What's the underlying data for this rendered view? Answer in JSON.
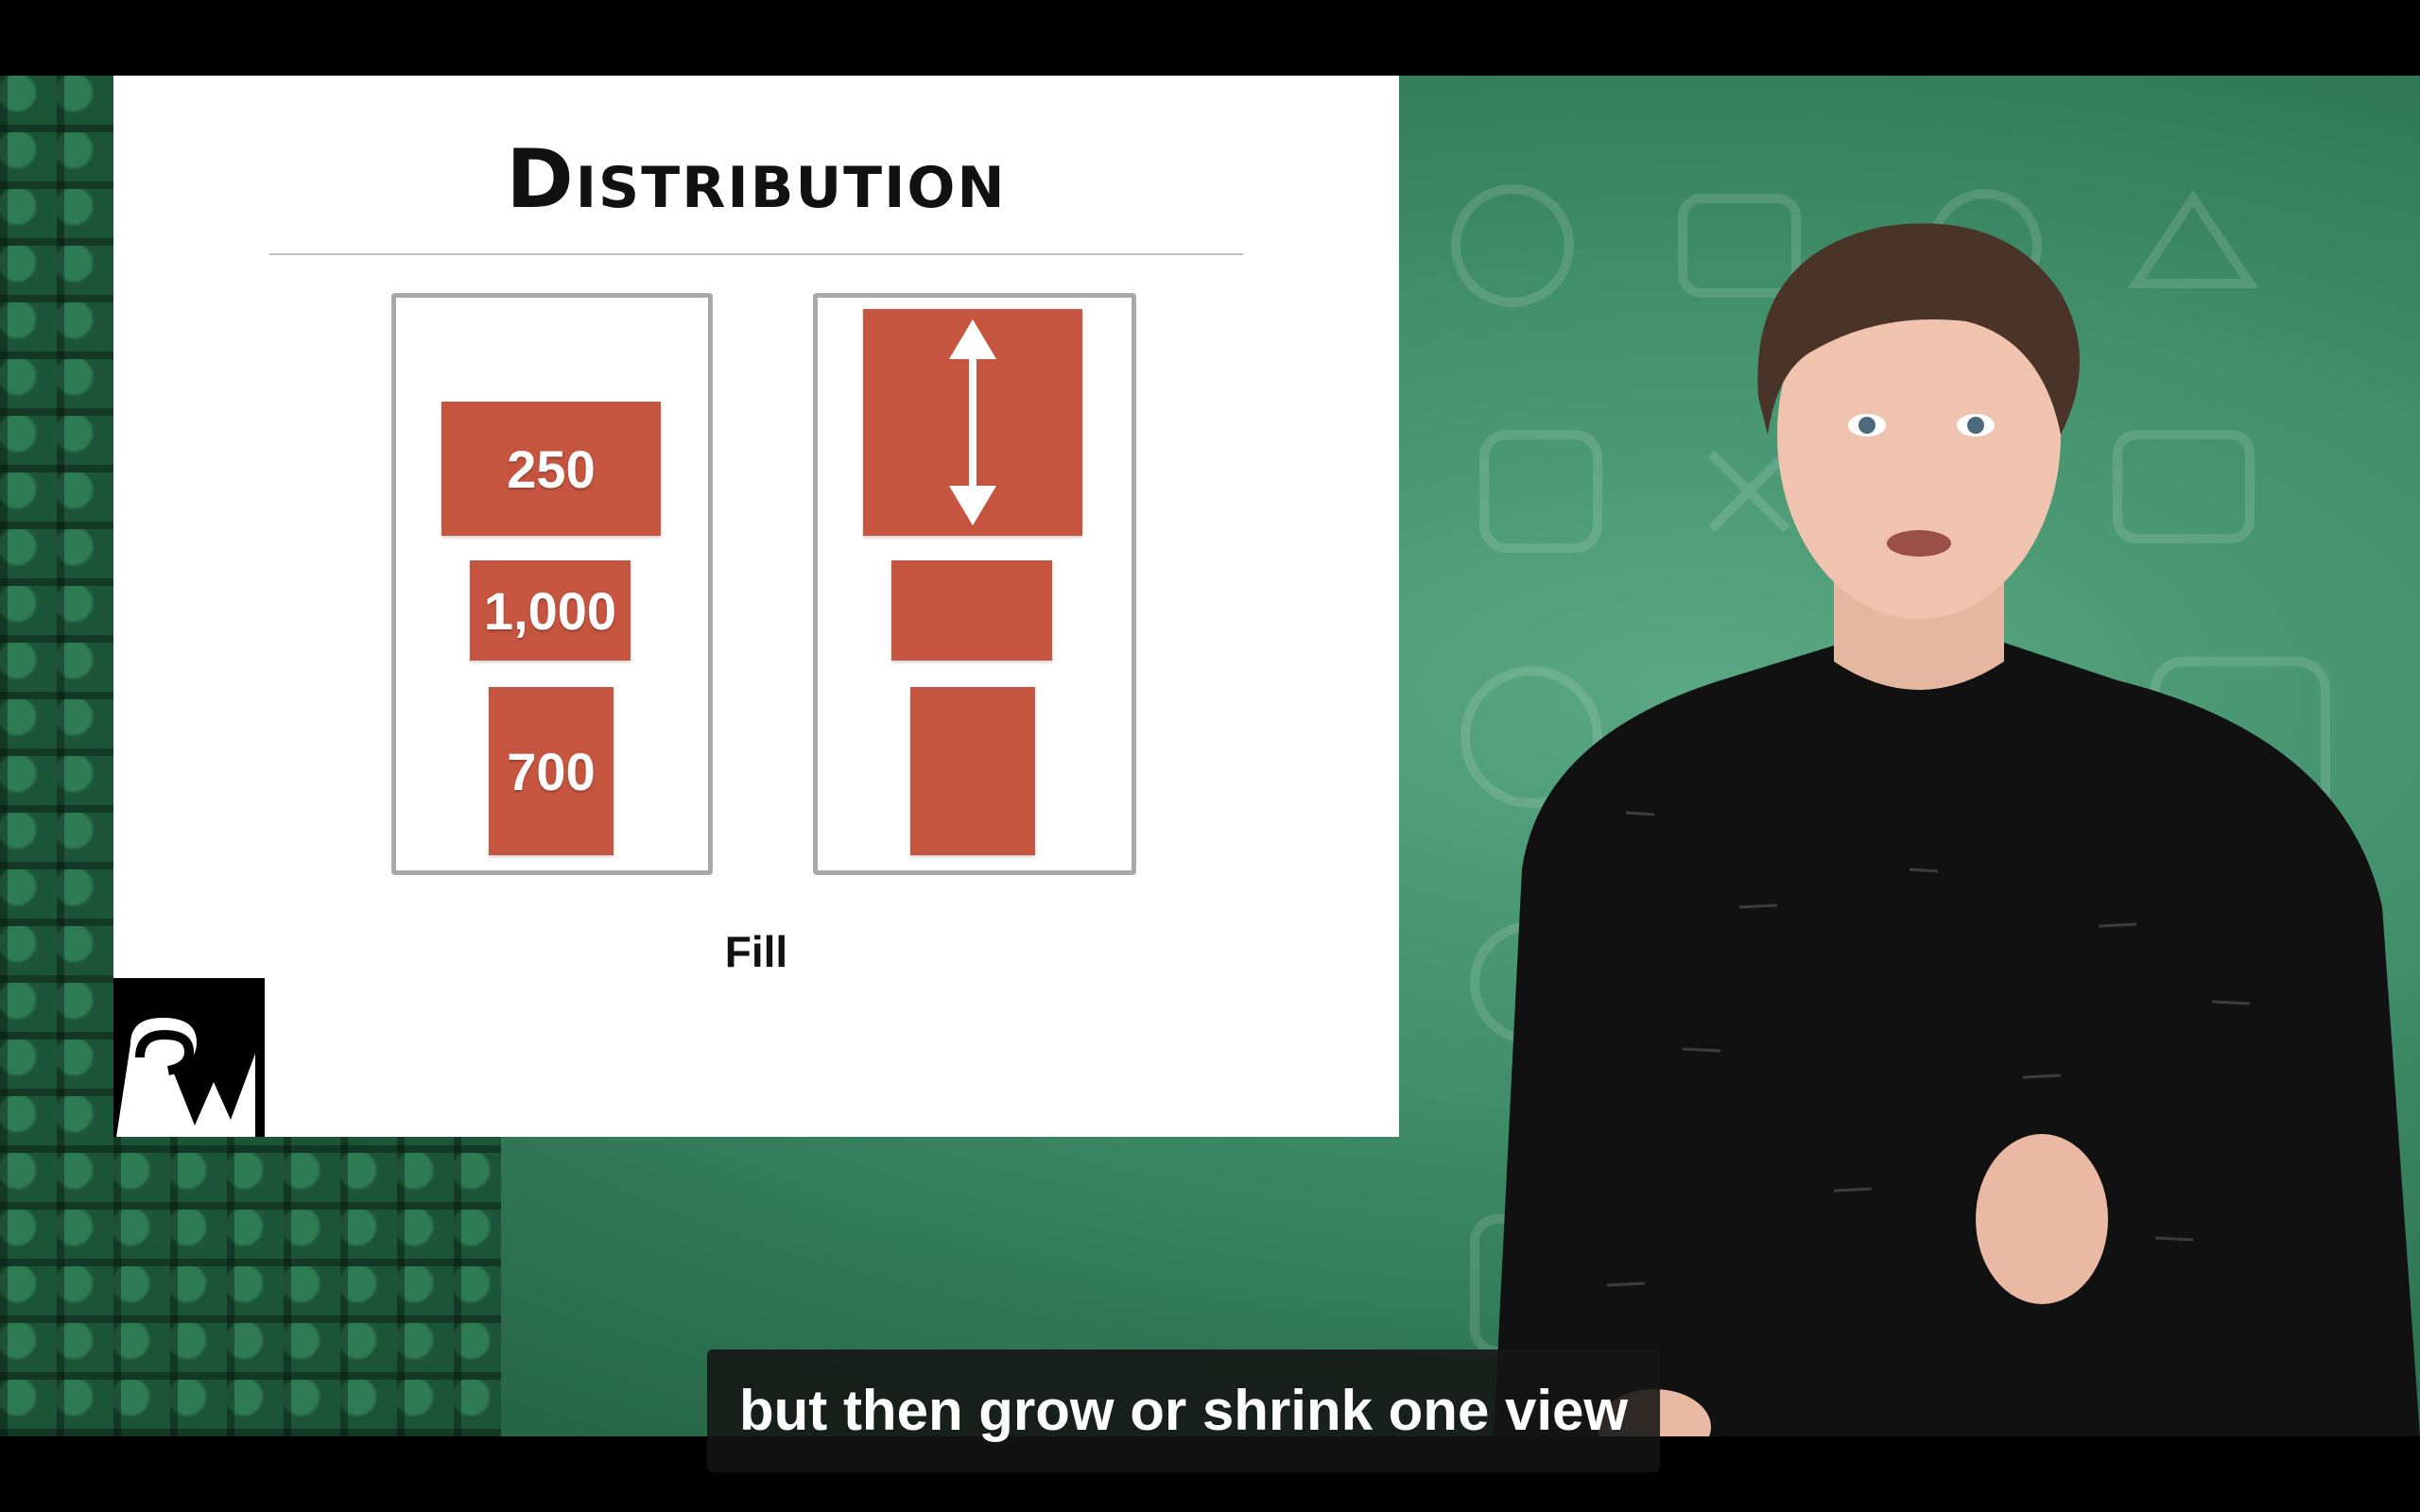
{
  "slide": {
    "title": "Distribution",
    "caption": "Fill",
    "left_stack": {
      "blocks": [
        {
          "label": "250"
        },
        {
          "label": "1,000"
        },
        {
          "label": "700"
        }
      ]
    },
    "right_stack": {
      "blocks": [
        {
          "label": "",
          "icon": "vertical-double-arrow-icon"
        },
        {
          "label": ""
        },
        {
          "label": ""
        }
      ]
    },
    "logo": "raywenderlich-logo"
  },
  "subtitle": {
    "text": "but then grow or shrink one view"
  },
  "colors": {
    "block": "#c65540",
    "backdrop": "#3f8d69",
    "subtitle_bg": "#141414"
  }
}
